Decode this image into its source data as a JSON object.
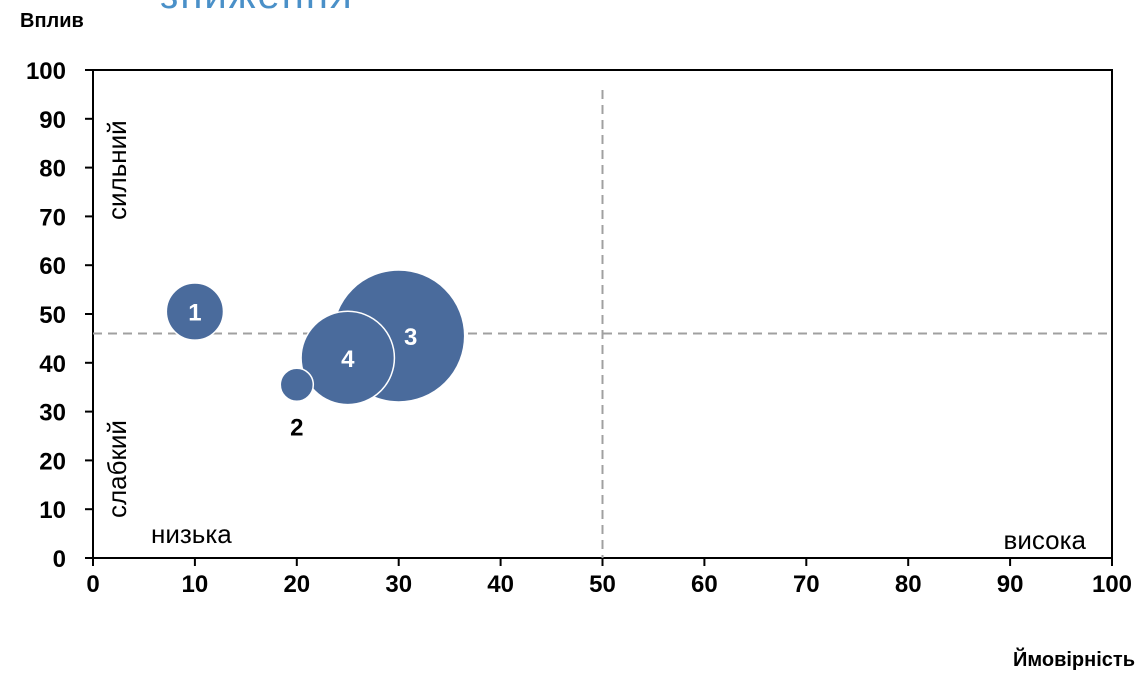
{
  "title": "зниження",
  "chart_data": {
    "type": "scatter",
    "xlabel": "Ймовірність",
    "ylabel": "Вплив",
    "xlim": [
      0,
      100
    ],
    "ylim": [
      0,
      100
    ],
    "x_ticks": [
      "0",
      "10",
      "20",
      "30",
      "40",
      "50",
      "60",
      "70",
      "80",
      "90",
      "100"
    ],
    "y_ticks": [
      "0",
      "10",
      "20",
      "30",
      "40",
      "50",
      "60",
      "70",
      "80",
      "90",
      "100"
    ],
    "threshold_x": 50,
    "threshold_y": 46,
    "quadrant_labels": {
      "strong": "сильний",
      "weak": "слабкий",
      "low": "низька",
      "high": "висока"
    },
    "bubble_color": "#4a6b9c",
    "points": [
      {
        "label": "1",
        "x": 10,
        "y": 50.5,
        "size": 3
      },
      {
        "label": "2",
        "x": 20,
        "y": 35.5,
        "size": 1
      },
      {
        "label": "3",
        "x": 30,
        "y": 45.5,
        "size": 16
      },
      {
        "label": "4",
        "x": 25,
        "y": 41,
        "size": 8
      }
    ]
  }
}
